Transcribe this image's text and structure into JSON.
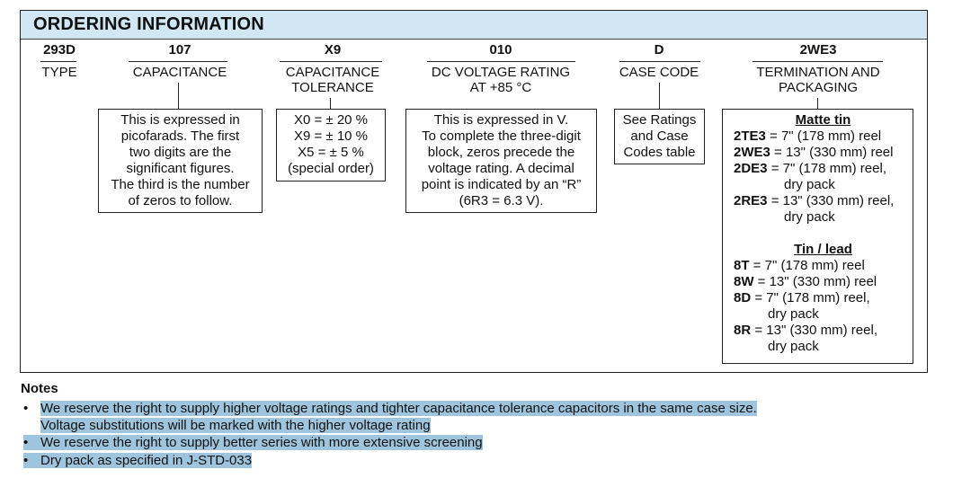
{
  "title": "ORDERING INFORMATION",
  "columns": [
    {
      "code": "293D",
      "label": "TYPE"
    },
    {
      "code": "107",
      "label": "CAPACITANCE"
    },
    {
      "code": "X9",
      "label": "CAPACITANCE",
      "label2": "TOLERANCE"
    },
    {
      "code": "010",
      "label": "DC VOLTAGE RATING",
      "label2": "AT +85 °C"
    },
    {
      "code": "D",
      "label": "CASE CODE"
    },
    {
      "code": "2WE3",
      "label": "TERMINATION AND",
      "label2": "PACKAGING"
    }
  ],
  "boxes": {
    "capacitance": [
      "This is expressed in",
      "picofarads. The first",
      "two digits are the",
      "significant figures.",
      "The third is the number",
      "of zeros to follow."
    ],
    "tolerance": [
      "X0 = ± 20 %",
      "X9 = ± 10 %",
      "X5 = ± 5 %",
      "(special order)"
    ],
    "voltage": [
      "This is expressed in V.",
      "To complete the three-digit",
      "block, zeros precede the",
      "voltage rating. A decimal",
      "point is indicated by an “R”",
      "(6R3 = 6.3 V)."
    ],
    "case": [
      "See Ratings",
      "and Case",
      "Codes table"
    ],
    "termination": {
      "matte_title": "Matte tin",
      "matte": [
        {
          "code": "2TE3",
          "text": " = 7\" (178 mm) reel"
        },
        {
          "code": "2WE3",
          "text": " = 13\" (330 mm) reel"
        },
        {
          "code": "2DE3",
          "text": " = 7\" (178 mm) reel,",
          "cont": "dry pack"
        },
        {
          "code": "2RE3",
          "text": " = 13\" (330 mm) reel,",
          "cont": "dry pack"
        }
      ],
      "lead_title": "Tin / lead",
      "lead": [
        {
          "code": "8T",
          "text": " = 7\" (178 mm) reel"
        },
        {
          "code": "8W",
          "text": " = 13\" (330 mm) reel"
        },
        {
          "code": "8D",
          "text": " = 7\" (178 mm) reel,",
          "cont": "dry pack"
        },
        {
          "code": "8R",
          "text": " = 13\" (330 mm) reel,",
          "cont": "dry pack"
        }
      ]
    }
  },
  "notes": {
    "title": "Notes",
    "bullet": "•",
    "items": [
      "We reserve the right to supply higher voltage ratings and tighter capacitance tolerance capacitors in the same case size.",
      "Voltage substitutions will be marked with the higher voltage rating",
      "We reserve the right to supply better series with more extensive screening",
      "Dry pack as specified in J-STD-033"
    ]
  },
  "colors": {
    "header_band": "#d2e7f4",
    "highlight": "#9fc5de"
  }
}
